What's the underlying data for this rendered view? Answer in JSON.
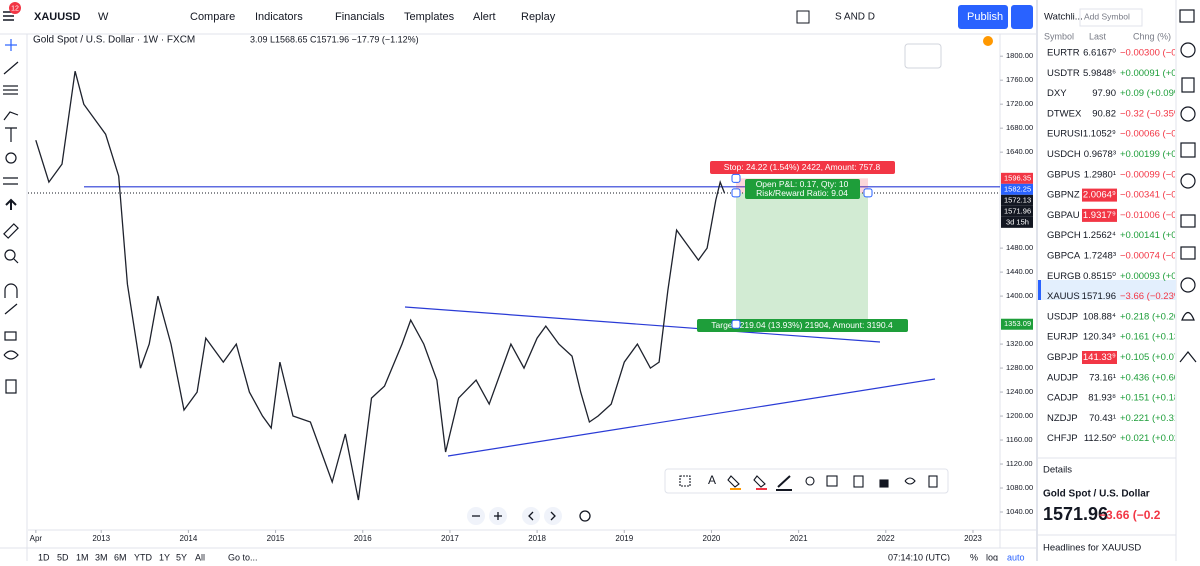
{
  "toolbar": {
    "badge": "12",
    "symbol": "XAUUSD",
    "interval": "W",
    "compare": "Compare",
    "indicators": "Indicators",
    "financials": "Financials",
    "templates": "Templates",
    "alert": "Alert",
    "replay": "Replay",
    "layout": "S AND D",
    "publish": "Publish"
  },
  "chart": {
    "legend": "Gold Spot / U.S. Dollar · 1W · FXCM",
    "ohlc": "3.09 L1568.65 C1571.96 −17.79 (−1.12%)",
    "ylim": [
      1010,
      1837
    ],
    "yticks": [
      {
        "value": 1040,
        "label": "1040.00"
      },
      {
        "value": 1080,
        "label": "1080.00"
      },
      {
        "value": 1120,
        "label": "1120.00"
      },
      {
        "value": 1160,
        "label": "1160.00"
      },
      {
        "value": 1200,
        "label": "1200.00"
      },
      {
        "value": 1240,
        "label": "1240.00"
      },
      {
        "value": 1280,
        "label": "1280.00"
      },
      {
        "value": 1320,
        "label": "1320.00"
      },
      {
        "value": 1400,
        "label": "1400.00"
      },
      {
        "value": 1440,
        "label": "1440.00"
      },
      {
        "value": 1480,
        "label": "1480.00"
      },
      {
        "value": 1640,
        "label": "1640.00"
      },
      {
        "value": 1680,
        "label": "1680.00"
      },
      {
        "value": 1720,
        "label": "1720.00"
      },
      {
        "value": 1760,
        "label": "1760.00"
      },
      {
        "value": 1800,
        "label": "1800.00"
      }
    ],
    "xlim": [
      2012.16,
      2023.31
    ],
    "xticks": [
      {
        "value": 2012.25,
        "label": "Apr"
      },
      2013,
      2014,
      2015,
      2016,
      2017,
      2018,
      2019,
      2020,
      2021,
      2022,
      2023
    ],
    "series": {
      "t": [
        2012.25,
        2012.4,
        2012.55,
        2012.7,
        2012.8,
        2012.95,
        2013.05,
        2013.2,
        2013.3,
        2013.45,
        2013.55,
        2013.65,
        2013.8,
        2013.95,
        2014.1,
        2014.2,
        2014.4,
        2014.55,
        2014.7,
        2014.85,
        2014.95,
        2015.05,
        2015.2,
        2015.4,
        2015.55,
        2015.65,
        2015.8,
        2015.95,
        2016.1,
        2016.25,
        2016.45,
        2016.55,
        2016.7,
        2016.85,
        2016.95,
        2017.1,
        2017.3,
        2017.45,
        2017.6,
        2017.7,
        2017.85,
        2018.0,
        2018.1,
        2018.25,
        2018.4,
        2018.5,
        2018.6,
        2018.7,
        2018.85,
        2019.0,
        2019.15,
        2019.3,
        2019.4,
        2019.5,
        2019.6,
        2019.7,
        2019.85,
        2019.95,
        2020.05,
        2020.1,
        2020.15
      ],
      "close": [
        1660,
        1590,
        1620,
        1775,
        1720,
        1690,
        1670,
        1600,
        1420,
        1280,
        1320,
        1400,
        1320,
        1210,
        1240,
        1330,
        1290,
        1320,
        1240,
        1200,
        1180,
        1290,
        1200,
        1190,
        1130,
        1090,
        1170,
        1060,
        1230,
        1250,
        1320,
        1360,
        1320,
        1260,
        1140,
        1230,
        1260,
        1220,
        1280,
        1320,
        1280,
        1330,
        1350,
        1320,
        1300,
        1240,
        1190,
        1200,
        1220,
        1290,
        1320,
        1280,
        1290,
        1410,
        1510,
        1490,
        1460,
        1480,
        1560,
        1590,
        1571.96
      ],
      "color": "#1e222d"
    },
    "price_labels": [
      {
        "value": 1596.35,
        "color": "#f23645"
      },
      {
        "value": 1582.25,
        "color": "#2962ff"
      },
      {
        "value": 1572.13,
        "color": "#131722"
      },
      {
        "value": 1571.96,
        "color": "#131722"
      },
      {
        "value": 1353.09,
        "color": "#1e9e3a"
      }
    ],
    "countdown": "3d 15h",
    "position": {
      "stop_label": "Stop: 24.22 (1.54%) 2422, Amount: 757.8",
      "pnl": "Open P&L: 0.17, Qty: 10",
      "rr": "Risk/Reward Ratio: 9.04",
      "target_label": "Target: 219.04 (13.93%) 21904, Amount: 3190.4"
    }
  },
  "drawing_toolbar": {
    "text_tool": "A"
  },
  "bottom_bar": {
    "ranges": [
      "1D",
      "5D",
      "1M",
      "3M",
      "6M",
      "YTD",
      "1Y",
      "5Y",
      "All"
    ],
    "goto": "Go to...",
    "clock": "07:14:10 (UTC)",
    "percent": "%",
    "log": "log",
    "auto": "auto"
  },
  "watchlist": {
    "title": "Watchli...",
    "add": "Add Symbol",
    "columns": [
      "Symbol",
      "Last",
      "Chng (%)"
    ],
    "rows": [
      {
        "symbol": "EURTR",
        "last": "6.6167⁰",
        "change": "−0.00300 (−0.0",
        "dir": "down"
      },
      {
        "symbol": "USDTR",
        "last": "5.9848⁶",
        "change": "+0.00091 (+0.0",
        "dir": "up"
      },
      {
        "symbol": "DXY",
        "last": "97.90",
        "change": "+0.09 (+0.09%)",
        "dir": "up"
      },
      {
        "symbol": "DTWEX",
        "last": "90.82",
        "change": "−0.32 (−0.35%)",
        "dir": "down"
      },
      {
        "symbol": "EURUSI",
        "last": "1.1052⁹",
        "change": "−0.00066 (−0.0",
        "dir": "down"
      },
      {
        "symbol": "USDCH",
        "last": "0.9678³",
        "change": "+0.00199 (+0.2",
        "dir": "up"
      },
      {
        "symbol": "GBPUS",
        "last": "1.2980¹",
        "change": "−0.00099 (−0.0",
        "dir": "down"
      },
      {
        "symbol": "GBPNZ",
        "last": "2.0064⁹",
        "change": "−0.00341 (−0.1",
        "dir": "down",
        "flash": "#f23645"
      },
      {
        "symbol": "GBPAU",
        "last": "1.9317⁹",
        "change": "−0.01006 (−0.5",
        "dir": "down",
        "flash": "#f23645"
      },
      {
        "symbol": "GBPCH",
        "last": "1.2562⁴",
        "change": "+0.00141 (+0.1",
        "dir": "up"
      },
      {
        "symbol": "GBPCA",
        "last": "1.7248³",
        "change": "−0.00074 (−0.0",
        "dir": "down"
      },
      {
        "symbol": "EURGB",
        "last": "0.8515⁰",
        "change": "+0.00093 (+0.1",
        "dir": "up"
      },
      {
        "symbol": "XAUUS",
        "last": "1571.96",
        "change": "−3.66 (−0.23%)",
        "dir": "down",
        "selected": true
      },
      {
        "symbol": "USDJP",
        "last": "108.88⁴",
        "change": "+0.218 (+0.20%",
        "dir": "up"
      },
      {
        "symbol": "EURJP",
        "last": "120.34⁹",
        "change": "+0.161 (+0.13%",
        "dir": "up"
      },
      {
        "symbol": "GBPJP",
        "last": "141.33⁹",
        "change": "+0.105 (+0.07%",
        "dir": "up",
        "flash": "#f23645"
      },
      {
        "symbol": "AUDJP",
        "last": "73.16¹",
        "change": "+0.436 (+0.60%",
        "dir": "up"
      },
      {
        "symbol": "CADJP",
        "last": "81.93⁸",
        "change": "+0.151 (+0.18%",
        "dir": "up"
      },
      {
        "symbol": "NZDJP",
        "last": "70.43¹",
        "change": "+0.221 (+0.31%",
        "dir": "up"
      },
      {
        "symbol": "CHFJP",
        "last": "112.50⁰",
        "change": "+0.021 (+0.02%",
        "dir": "up"
      }
    ]
  },
  "details": {
    "title": "Details",
    "name": "Gold Spot / U.S. Dollar",
    "price": "1571.96",
    "change": "−3.66 (−0.2",
    "headlines": "Headlines for XAUUSD"
  }
}
